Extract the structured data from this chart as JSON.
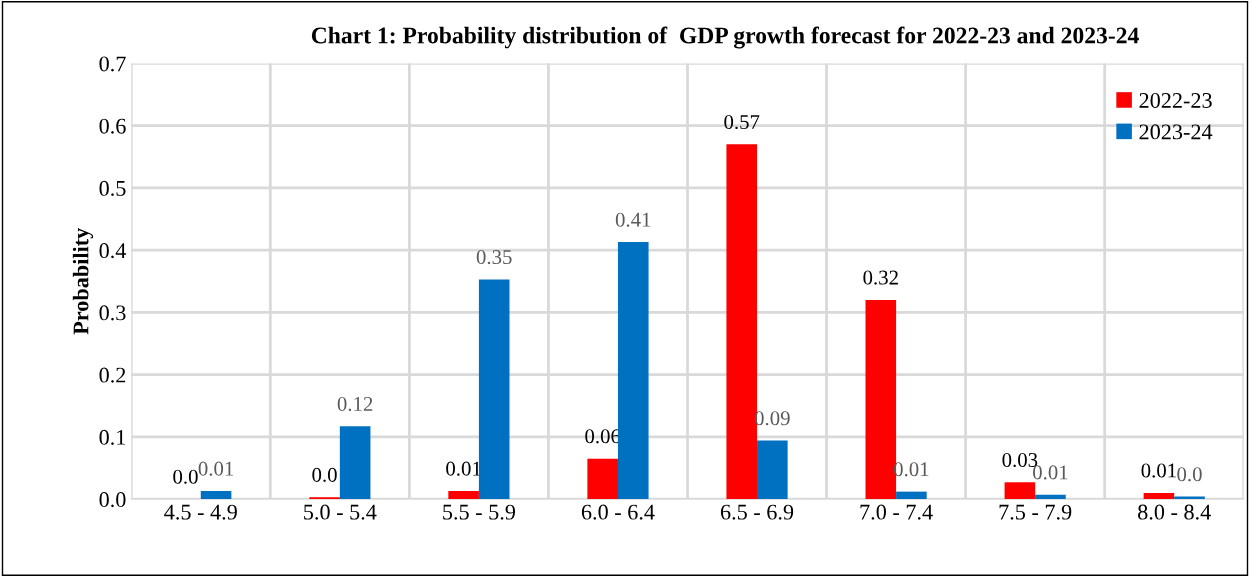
{
  "chart_data": {
    "type": "bar",
    "title": "Chart 1: Probability distribution of  GDP growth forecast for 2022-23 and 2023-24",
    "ylabel": "Probability",
    "categories": [
      "4.5 - 4.9",
      "5.0 - 5.4",
      "5.5 - 5.9",
      "6.0 - 6.4",
      "6.5 - 6.9",
      "7.0 - 7.4",
      "7.5 - 7.9",
      "8.0 - 8.4"
    ],
    "series": [
      {
        "name": "2022-23",
        "color": "#ff0000",
        "values": [
          0.0,
          0.003,
          0.013,
          0.065,
          0.57,
          0.32,
          0.027,
          0.01
        ],
        "value_labels": [
          "0.0",
          "0.0",
          "0.01",
          "0.06",
          "0.57",
          "0.32",
          "0.03",
          "0.01"
        ]
      },
      {
        "name": "2023-24",
        "color": "#0070c0",
        "values": [
          0.013,
          0.117,
          0.353,
          0.413,
          0.094,
          0.012,
          0.007,
          0.004
        ],
        "value_labels": [
          "0.01",
          "0.12",
          "0.35",
          "0.41",
          "0.09",
          "0.01",
          "0.01",
          "0.0"
        ]
      }
    ],
    "ylim": [
      0,
      0.7
    ],
    "yticks": [
      {
        "value": 0,
        "label": "0.0"
      },
      0.1,
      0.2,
      0.3,
      0.4,
      0.5,
      0.6,
      0.7
    ],
    "grid": true,
    "legend": "top right"
  }
}
